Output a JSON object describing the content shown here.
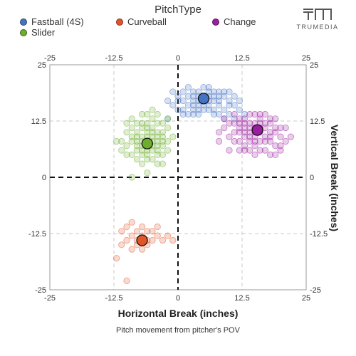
{
  "legend": {
    "title": "PitchType",
    "items": [
      {
        "name": "Fastball (4S)",
        "color": "#4472c4"
      },
      {
        "name": "Curveball",
        "color": "#e0552a"
      },
      {
        "name": "Change",
        "color": "#9b1ea0"
      },
      {
        "name": "Slider",
        "color": "#6cae2d"
      }
    ]
  },
  "logo": {
    "text": "TRUMEDIA",
    "icon": "tm-logo-icon"
  },
  "caption": "Pitch movement from pitcher's POV",
  "chart_data": {
    "type": "scatter",
    "xlabel": "Horizontal Break (inches)",
    "ylabel": "Vertical Break (inches)",
    "xlim": [
      -25,
      25
    ],
    "ylim": [
      -25,
      25
    ],
    "xticks": [
      -25,
      -12.5,
      0,
      12.5,
      25
    ],
    "yticks": [
      -25,
      -12.5,
      0,
      12.5,
      25
    ],
    "xtick_labels": [
      "-25",
      "-12.5",
      "0",
      "12.5",
      "25"
    ],
    "ytick_labels": [
      "-25",
      "-12.5",
      "0",
      "12.5",
      "25"
    ],
    "grid": true,
    "zero_lines": "dashed",
    "series": [
      {
        "name": "Fastball (4S)",
        "color": "#4472c4",
        "mean": {
          "x": 5,
          "y": 17.5
        },
        "points": [
          [
            2,
            18
          ],
          [
            3,
            17
          ],
          [
            4,
            19
          ],
          [
            5,
            18
          ],
          [
            6,
            17
          ],
          [
            7,
            18
          ],
          [
            8,
            17
          ],
          [
            4,
            16
          ],
          [
            6,
            16
          ],
          [
            3,
            19
          ],
          [
            5,
            20
          ],
          [
            7,
            19
          ],
          [
            9,
            18
          ],
          [
            2,
            16
          ],
          [
            1,
            17
          ],
          [
            8,
            16
          ],
          [
            10,
            17
          ],
          [
            6,
            19
          ],
          [
            4,
            18
          ],
          [
            3,
            15
          ],
          [
            5,
            15
          ],
          [
            7,
            15
          ],
          [
            9,
            15
          ],
          [
            11,
            16
          ],
          [
            1,
            19
          ],
          [
            0,
            18
          ],
          [
            -2,
            17
          ],
          [
            0,
            15
          ],
          [
            1,
            14
          ],
          [
            4,
            14
          ],
          [
            8,
            14
          ],
          [
            10,
            14
          ],
          [
            12,
            17
          ],
          [
            11,
            18
          ],
          [
            6,
            20
          ],
          [
            2,
            20
          ],
          [
            -1,
            16
          ],
          [
            3,
            16
          ],
          [
            7,
            17
          ],
          [
            9,
            19
          ],
          [
            5,
            16
          ],
          [
            6,
            15
          ],
          [
            8,
            19
          ],
          [
            4,
            17
          ],
          [
            10,
            19
          ],
          [
            2,
            14
          ],
          [
            11,
            13
          ],
          [
            9,
            13
          ],
          [
            -1,
            19
          ],
          [
            12,
            15
          ],
          [
            13,
            14
          ],
          [
            -2,
            13
          ],
          [
            0,
            17
          ],
          [
            7,
            14
          ],
          [
            3,
            18
          ],
          [
            6,
            18
          ],
          [
            5,
            17
          ],
          [
            8,
            18
          ],
          [
            4,
            15
          ],
          [
            10,
            16
          ],
          [
            1,
            15
          ],
          [
            3,
            14
          ]
        ]
      },
      {
        "name": "Curveball",
        "color": "#e0552a",
        "mean": {
          "x": -7,
          "y": -14
        },
        "points": [
          [
            -7,
            -13
          ],
          [
            -8,
            -14
          ],
          [
            -6,
            -15
          ],
          [
            -9,
            -13
          ],
          [
            -5,
            -14
          ],
          [
            -8,
            -12
          ],
          [
            -6,
            -12
          ],
          [
            -10,
            -14
          ],
          [
            -4,
            -13
          ],
          [
            -7,
            -16
          ],
          [
            -9,
            -16
          ],
          [
            -5,
            -12
          ],
          [
            -8,
            -15
          ],
          [
            -11,
            -12
          ],
          [
            -6,
            -14
          ],
          [
            -10,
            -11
          ],
          [
            -3,
            -14
          ],
          [
            -7,
            -11
          ],
          [
            -11,
            -15
          ],
          [
            -2,
            -13
          ],
          [
            -9,
            -10
          ],
          [
            -12,
            -18
          ],
          [
            -10,
            -23
          ],
          [
            -4,
            -11
          ],
          [
            -1,
            -14
          ]
        ]
      },
      {
        "name": "Change",
        "color": "#9b1ea0",
        "mean": {
          "x": 15.5,
          "y": 10.5
        },
        "points": [
          [
            14,
            11
          ],
          [
            16,
            10
          ],
          [
            15,
            12
          ],
          [
            17,
            11
          ],
          [
            13,
            10
          ],
          [
            18,
            10
          ],
          [
            15,
            9
          ],
          [
            16,
            13
          ],
          [
            14,
            8
          ],
          [
            17,
            8
          ],
          [
            19,
            10
          ],
          [
            12,
            11
          ],
          [
            13,
            13
          ],
          [
            18,
            12
          ],
          [
            15,
            7
          ],
          [
            20,
            9
          ],
          [
            11,
            10
          ],
          [
            16,
            6
          ],
          [
            12,
            8
          ],
          [
            19,
            7
          ],
          [
            14,
            14
          ],
          [
            17,
            14
          ],
          [
            20,
            6
          ],
          [
            13,
            6
          ],
          [
            18,
            5
          ],
          [
            10,
            12
          ],
          [
            15,
            5
          ],
          [
            21,
            11
          ],
          [
            9,
            13
          ],
          [
            19,
            13
          ],
          [
            11,
            14
          ],
          [
            16,
            11
          ],
          [
            14,
            10
          ],
          [
            17,
            9
          ],
          [
            15,
            11
          ],
          [
            13,
            9
          ],
          [
            18,
            9
          ],
          [
            12,
            12
          ],
          [
            16,
            8
          ],
          [
            14,
            12
          ],
          [
            20,
            11
          ],
          [
            11,
            8
          ],
          [
            13,
            7
          ],
          [
            17,
            12
          ],
          [
            15,
            14
          ],
          [
            9,
            11
          ],
          [
            12,
            13
          ],
          [
            19,
            5
          ],
          [
            21,
            8
          ],
          [
            10,
            9
          ],
          [
            14,
            6
          ],
          [
            18,
            8
          ],
          [
            8,
            10
          ],
          [
            16,
            14
          ],
          [
            22,
            9
          ],
          [
            15,
            10
          ],
          [
            17,
            6
          ],
          [
            13,
            12
          ],
          [
            12,
            10
          ],
          [
            11,
            12
          ],
          [
            19,
            11
          ],
          [
            20,
            7
          ],
          [
            14,
            9
          ],
          [
            16,
            12
          ],
          [
            12,
            6
          ],
          [
            8,
            8
          ],
          [
            10,
            6
          ],
          [
            18,
            13
          ],
          [
            15,
            8
          ],
          [
            13,
            11
          ]
        ]
      },
      {
        "name": "Slider",
        "color": "#6cae2d",
        "mean": {
          "x": -6,
          "y": 7.5
        },
        "points": [
          [
            -6,
            8
          ],
          [
            -5,
            7
          ],
          [
            -7,
            9
          ],
          [
            -4,
            8
          ],
          [
            -8,
            7
          ],
          [
            -6,
            6
          ],
          [
            -5,
            10
          ],
          [
            -7,
            5
          ],
          [
            -3,
            9
          ],
          [
            -9,
            8
          ],
          [
            -4,
            6
          ],
          [
            -6,
            11
          ],
          [
            -8,
            10
          ],
          [
            -5,
            4
          ],
          [
            -3,
            7
          ],
          [
            -10,
            7
          ],
          [
            -7,
            12
          ],
          [
            -4,
            12
          ],
          [
            -2,
            8
          ],
          [
            -9,
            5
          ],
          [
            -6,
            4
          ],
          [
            -8,
            12
          ],
          [
            -3,
            5
          ],
          [
            -5,
            13
          ],
          [
            -10,
            10
          ],
          [
            -7,
            3
          ],
          [
            -11,
            8
          ],
          [
            -4,
            3
          ],
          [
            -2,
            11
          ],
          [
            -6,
            14
          ],
          [
            -9,
            11
          ],
          [
            -3,
            12
          ],
          [
            -8,
            4
          ],
          [
            -5,
            9
          ],
          [
            -7,
            7
          ],
          [
            -6,
            9
          ],
          [
            -4,
            10
          ],
          [
            -8,
            9
          ],
          [
            -5,
            6
          ],
          [
            -7,
            11
          ],
          [
            -3,
            10
          ],
          [
            -9,
            9
          ],
          [
            -6,
            12
          ],
          [
            -4,
            5
          ],
          [
            -2,
            6
          ],
          [
            -10,
            5
          ],
          [
            -8,
            6
          ],
          [
            -5,
            11
          ],
          [
            -11,
            6
          ],
          [
            -3,
            3
          ],
          [
            -7,
            14
          ],
          [
            -6,
            5
          ],
          [
            -4,
            14
          ],
          [
            -9,
            13
          ],
          [
            -12,
            8
          ],
          [
            -1,
            9
          ],
          [
            -2,
            13
          ],
          [
            -10,
            12
          ],
          [
            -6,
            1
          ],
          [
            -9,
            0
          ],
          [
            -5,
            15
          ],
          [
            -7,
            8
          ],
          [
            -4,
            7
          ],
          [
            -5,
            8
          ],
          [
            -8,
            8
          ],
          [
            -6,
            10
          ],
          [
            -3,
            8
          ],
          [
            -7,
            6
          ],
          [
            -4,
            9
          ],
          [
            -6,
            7
          ]
        ]
      }
    ]
  }
}
